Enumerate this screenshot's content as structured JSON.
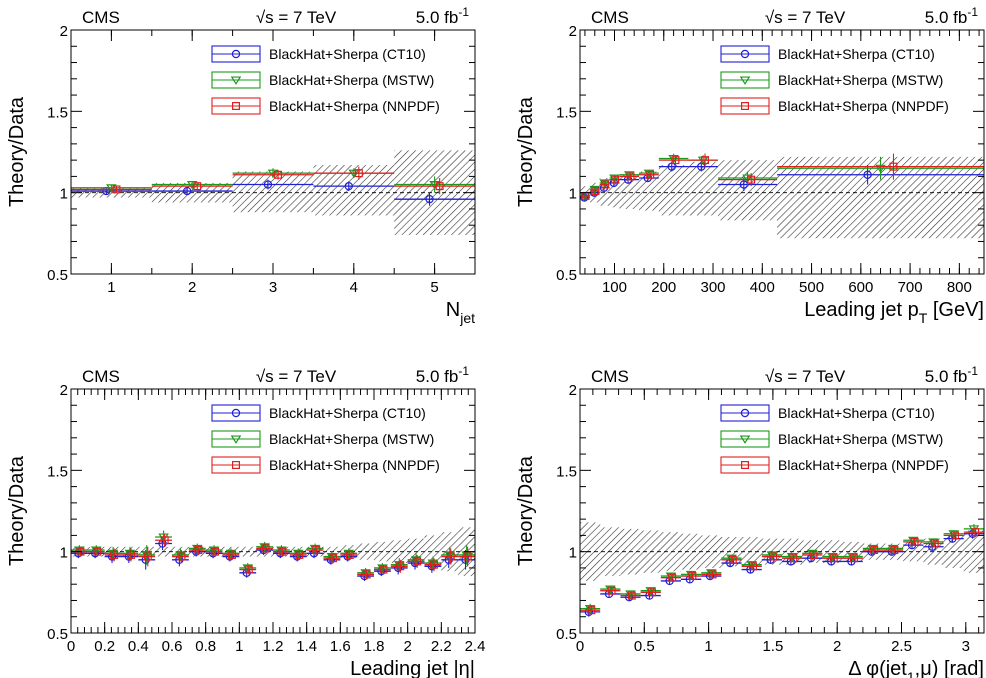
{
  "colors": {
    "ct10": "#1f1fd6",
    "mstw": "#1a9a1a",
    "nnpdf": "#e01e1e",
    "band": "#333333",
    "axis": "#000000"
  },
  "legend_labels": [
    "BlackHat+Sherpa (CT10)",
    "BlackHat+Sherpa (MSTW)",
    "BlackHat+Sherpa (NNPDF)"
  ],
  "chart_data": [
    {
      "type": "line",
      "header": {
        "left": "CMS",
        "center": "√s = 7 TeV",
        "right_base": "5.0 fb",
        "right_sup": "-1"
      },
      "xlabel": "N",
      "xlabel_sub": "jet",
      "xlabel_post": "",
      "ylabel": "Theory/Data",
      "xlim": [
        0.5,
        5.5
      ],
      "ylim": [
        0.5,
        2
      ],
      "xticks": [
        1,
        2,
        3,
        4,
        5
      ],
      "xtick_labels": [
        "1",
        "2",
        "3",
        "4",
        "5"
      ],
      "yticks": [
        0.5,
        1,
        1.5,
        2
      ],
      "ytick_labels": [
        "0.5",
        "1",
        "1.5",
        "2"
      ],
      "legend_position": "top-right",
      "bins": [
        [
          0.5,
          1.5
        ],
        [
          1.5,
          2.5
        ],
        [
          2.5,
          3.5
        ],
        [
          3.5,
          4.5
        ],
        [
          4.5,
          5.5
        ]
      ],
      "uncertainty_band": [
        [
          0.97,
          1.03
        ],
        [
          0.94,
          1.06
        ],
        [
          0.88,
          1.13
        ],
        [
          0.86,
          1.17
        ],
        [
          0.74,
          1.26
        ]
      ],
      "series": [
        {
          "name": "BlackHat+Sherpa (CT10)",
          "values": [
            1.01,
            1.01,
            1.05,
            1.04,
            0.96
          ],
          "errors": [
            0.02,
            0.02,
            0.03,
            0.03,
            0.04
          ]
        },
        {
          "name": "BlackHat+Sherpa (MSTW)",
          "values": [
            1.03,
            1.05,
            1.12,
            1.12,
            1.05
          ],
          "errors": [
            0.02,
            0.02,
            0.03,
            0.03,
            0.05
          ]
        },
        {
          "name": "BlackHat+Sherpa (NNPDF)",
          "values": [
            1.02,
            1.04,
            1.11,
            1.12,
            1.04
          ],
          "errors": [
            0.02,
            0.02,
            0.03,
            0.04,
            0.05
          ]
        }
      ]
    },
    {
      "type": "line",
      "header": {
        "left": "CMS",
        "center": "√s = 7 TeV",
        "right_base": "5.0 fb",
        "right_sup": "-1"
      },
      "xlabel": "Leading jet p",
      "xlabel_sub": "T",
      "xlabel_post": " [GeV]",
      "ylabel": "Theory/Data",
      "xlim": [
        30,
        850
      ],
      "ylim": [
        0.5,
        2
      ],
      "xticks": [
        100,
        200,
        300,
        400,
        500,
        600,
        700,
        800
      ],
      "xtick_labels": [
        "100",
        "200",
        "300",
        "400",
        "500",
        "600",
        "700",
        "800"
      ],
      "yticks": [
        0.5,
        1,
        1.5,
        2
      ],
      "ytick_labels": [
        "0.5",
        "1",
        "1.5",
        "2"
      ],
      "legend_position": "top-right",
      "bins": [
        [
          30,
          50
        ],
        [
          50,
          70
        ],
        [
          70,
          90
        ],
        [
          90,
          110
        ],
        [
          110,
          150
        ],
        [
          150,
          190
        ],
        [
          190,
          250
        ],
        [
          250,
          310
        ],
        [
          310,
          430
        ],
        [
          430,
          850
        ]
      ],
      "uncertainty_band": [
        [
          0.96,
          1.04
        ],
        [
          0.94,
          1.06
        ],
        [
          0.92,
          1.09
        ],
        [
          0.91,
          1.1
        ],
        [
          0.9,
          1.11
        ],
        [
          0.89,
          1.13
        ],
        [
          0.86,
          1.17
        ],
        [
          0.86,
          1.19
        ],
        [
          0.83,
          1.2
        ],
        [
          0.72,
          1.22
        ]
      ],
      "series": [
        {
          "name": "BlackHat+Sherpa (CT10)",
          "values": [
            0.97,
            1.0,
            1.03,
            1.06,
            1.08,
            1.09,
            1.16,
            1.16,
            1.05,
            1.11
          ],
          "errors": [
            0.02,
            0.02,
            0.02,
            0.02,
            0.02,
            0.02,
            0.03,
            0.03,
            0.04,
            0.06
          ]
        },
        {
          "name": "BlackHat+Sherpa (MSTW)",
          "values": [
            0.98,
            1.02,
            1.06,
            1.09,
            1.11,
            1.12,
            1.21,
            1.2,
            1.09,
            1.15
          ],
          "errors": [
            0.02,
            0.02,
            0.02,
            0.02,
            0.02,
            0.02,
            0.03,
            0.03,
            0.04,
            0.07
          ]
        },
        {
          "name": "BlackHat+Sherpa (NNPDF)",
          "values": [
            0.98,
            1.01,
            1.05,
            1.08,
            1.1,
            1.11,
            1.2,
            1.2,
            1.08,
            1.16
          ],
          "errors": [
            0.02,
            0.02,
            0.02,
            0.02,
            0.02,
            0.02,
            0.03,
            0.04,
            0.04,
            0.08
          ]
        }
      ]
    },
    {
      "type": "line",
      "header": {
        "left": "CMS",
        "center": "√s = 7 TeV",
        "right_base": "5.0 fb",
        "right_sup": "-1"
      },
      "xlabel": "Leading jet |η|",
      "xlabel_sub": "",
      "xlabel_post": "",
      "ylabel": "Theory/Data",
      "xlim": [
        0,
        2.4
      ],
      "ylim": [
        0.5,
        2
      ],
      "xticks": [
        0,
        0.2,
        0.4,
        0.6,
        0.8,
        1,
        1.2,
        1.4,
        1.6,
        1.8,
        2,
        2.2,
        2.4
      ],
      "xtick_labels": [
        "0",
        "0.2",
        "0.4",
        "0.6",
        "0.8",
        "1",
        "1.2",
        "1.4",
        "1.6",
        "1.8",
        "2",
        "2.2",
        "2.4"
      ],
      "yticks": [
        0.5,
        1,
        1.5,
        2
      ],
      "ytick_labels": [
        "0.5",
        "1",
        "1.5",
        "2"
      ],
      "legend_position": "top-right",
      "bins": [
        [
          0,
          0.1
        ],
        [
          0.1,
          0.2
        ],
        [
          0.2,
          0.3
        ],
        [
          0.3,
          0.4
        ],
        [
          0.4,
          0.5
        ],
        [
          0.5,
          0.6
        ],
        [
          0.6,
          0.7
        ],
        [
          0.7,
          0.8
        ],
        [
          0.8,
          0.9
        ],
        [
          0.9,
          1.0
        ],
        [
          1.0,
          1.1
        ],
        [
          1.1,
          1.2
        ],
        [
          1.2,
          1.3
        ],
        [
          1.3,
          1.4
        ],
        [
          1.4,
          1.5
        ],
        [
          1.5,
          1.6
        ],
        [
          1.6,
          1.7
        ],
        [
          1.7,
          1.8
        ],
        [
          1.8,
          1.9
        ],
        [
          1.9,
          2.0
        ],
        [
          2.0,
          2.1
        ],
        [
          2.1,
          2.2
        ],
        [
          2.2,
          2.3
        ],
        [
          2.3,
          2.4
        ]
      ],
      "uncertainty_band": [
        [
          0.97,
          1.03
        ],
        [
          0.97,
          1.03
        ],
        [
          0.97,
          1.03
        ],
        [
          0.97,
          1.03
        ],
        [
          0.97,
          1.03
        ],
        [
          0.97,
          1.03
        ],
        [
          0.97,
          1.03
        ],
        [
          0.97,
          1.03
        ],
        [
          0.97,
          1.03
        ],
        [
          0.97,
          1.03
        ],
        [
          0.97,
          1.03
        ],
        [
          0.97,
          1.03
        ],
        [
          0.97,
          1.03
        ],
        [
          0.97,
          1.03
        ],
        [
          0.97,
          1.03
        ],
        [
          0.97,
          1.03
        ],
        [
          0.96,
          1.04
        ],
        [
          0.95,
          1.05
        ],
        [
          0.94,
          1.06
        ],
        [
          0.93,
          1.07
        ],
        [
          0.92,
          1.08
        ],
        [
          0.9,
          1.1
        ],
        [
          0.88,
          1.12
        ],
        [
          0.85,
          1.15
        ]
      ],
      "series": [
        {
          "name": "BlackHat+Sherpa (CT10)",
          "values": [
            0.99,
            0.99,
            0.97,
            0.97,
            0.95,
            1.05,
            0.95,
            1.0,
            0.99,
            0.97,
            0.87,
            1.01,
            0.99,
            0.97,
            0.99,
            0.95,
            0.97,
            0.85,
            0.88,
            0.9,
            0.93,
            0.91,
            0.95,
            0.95
          ],
          "errors": [
            0.03,
            0.03,
            0.04,
            0.04,
            0.06,
            0.04,
            0.04,
            0.03,
            0.03,
            0.03,
            0.03,
            0.03,
            0.03,
            0.03,
            0.03,
            0.03,
            0.03,
            0.03,
            0.03,
            0.04,
            0.04,
            0.04,
            0.05,
            0.06
          ]
        },
        {
          "name": "BlackHat+Sherpa (MSTW)",
          "values": [
            1.01,
            1.01,
            0.99,
            0.99,
            0.98,
            1.09,
            0.98,
            1.02,
            1.01,
            0.99,
            0.9,
            1.03,
            1.01,
            0.99,
            1.02,
            0.97,
            0.99,
            0.87,
            0.9,
            0.92,
            0.95,
            0.93,
            0.98,
            0.98
          ],
          "errors": [
            0.03,
            0.03,
            0.04,
            0.04,
            0.06,
            0.04,
            0.04,
            0.03,
            0.03,
            0.03,
            0.03,
            0.03,
            0.03,
            0.03,
            0.03,
            0.03,
            0.03,
            0.03,
            0.03,
            0.04,
            0.04,
            0.04,
            0.05,
            0.06
          ]
        },
        {
          "name": "BlackHat+Sherpa (NNPDF)",
          "values": [
            1.0,
            1.0,
            0.98,
            0.98,
            0.97,
            1.07,
            0.97,
            1.01,
            1.0,
            0.98,
            0.89,
            1.02,
            1.0,
            0.98,
            1.01,
            0.96,
            0.98,
            0.86,
            0.89,
            0.91,
            0.94,
            0.92,
            0.97,
            0.97
          ],
          "errors": [
            0.03,
            0.03,
            0.04,
            0.04,
            0.06,
            0.04,
            0.04,
            0.03,
            0.03,
            0.03,
            0.03,
            0.03,
            0.03,
            0.03,
            0.03,
            0.03,
            0.03,
            0.03,
            0.03,
            0.04,
            0.04,
            0.04,
            0.05,
            0.06
          ]
        }
      ]
    },
    {
      "type": "line",
      "header": {
        "left": "CMS",
        "center": "√s = 7 TeV",
        "right_base": "5.0 fb",
        "right_sup": "-1"
      },
      "xlabel": "Δ φ(jet",
      "xlabel_sub": "1",
      "xlabel_post": ",μ) [rad]",
      "ylabel": "Theory/Data",
      "xlim": [
        0,
        3.1416
      ],
      "ylim": [
        0.5,
        2
      ],
      "xticks": [
        0,
        0.5,
        1,
        1.5,
        2,
        2.5,
        3
      ],
      "xtick_labels": [
        "0",
        "0.5",
        "1",
        "1.5",
        "2",
        "2.5",
        "3"
      ],
      "yticks": [
        0.5,
        1,
        1.5,
        2
      ],
      "ytick_labels": [
        "0.5",
        "1",
        "1.5",
        "2"
      ],
      "legend_position": "top-right",
      "bins": [
        [
          0,
          0.1571
        ],
        [
          0.1571,
          0.3142
        ],
        [
          0.3142,
          0.4712
        ],
        [
          0.4712,
          0.6283
        ],
        [
          0.6283,
          0.7854
        ],
        [
          0.7854,
          0.9425
        ],
        [
          0.9425,
          1.0996
        ],
        [
          1.0996,
          1.2566
        ],
        [
          1.2566,
          1.4137
        ],
        [
          1.4137,
          1.5708
        ],
        [
          1.5708,
          1.7279
        ],
        [
          1.7279,
          1.885
        ],
        [
          1.885,
          2.042
        ],
        [
          2.042,
          2.1991
        ],
        [
          2.1991,
          2.3562
        ],
        [
          2.3562,
          2.5133
        ],
        [
          2.5133,
          2.6704
        ],
        [
          2.6704,
          2.8274
        ],
        [
          2.8274,
          2.9845
        ],
        [
          2.9845,
          3.1416
        ]
      ],
      "uncertainty_band": [
        [
          0.82,
          1.18
        ],
        [
          0.85,
          1.15
        ],
        [
          0.86,
          1.14
        ],
        [
          0.87,
          1.13
        ],
        [
          0.88,
          1.12
        ],
        [
          0.89,
          1.11
        ],
        [
          0.9,
          1.1
        ],
        [
          0.91,
          1.09
        ],
        [
          0.91,
          1.09
        ],
        [
          0.92,
          1.08
        ],
        [
          0.92,
          1.08
        ],
        [
          0.93,
          1.07
        ],
        [
          0.93,
          1.07
        ],
        [
          0.94,
          1.06
        ],
        [
          0.95,
          1.05
        ],
        [
          0.95,
          1.05
        ],
        [
          0.94,
          1.06
        ],
        [
          0.92,
          1.08
        ],
        [
          0.9,
          1.1
        ],
        [
          0.87,
          1.13
        ]
      ],
      "series": [
        {
          "name": "BlackHat+Sherpa (CT10)",
          "values": [
            0.63,
            0.74,
            0.72,
            0.73,
            0.82,
            0.83,
            0.85,
            0.93,
            0.89,
            0.95,
            0.94,
            0.96,
            0.94,
            0.94,
            1.0,
            1.0,
            1.04,
            1.03,
            1.08,
            1.11
          ],
          "errors": [
            0.03,
            0.02,
            0.02,
            0.02,
            0.02,
            0.02,
            0.02,
            0.02,
            0.02,
            0.02,
            0.02,
            0.02,
            0.02,
            0.02,
            0.02,
            0.02,
            0.02,
            0.02,
            0.02,
            0.03
          ]
        },
        {
          "name": "BlackHat+Sherpa (MSTW)",
          "values": [
            0.65,
            0.77,
            0.74,
            0.76,
            0.85,
            0.86,
            0.87,
            0.96,
            0.92,
            0.98,
            0.97,
            0.99,
            0.97,
            0.97,
            1.02,
            1.02,
            1.07,
            1.06,
            1.11,
            1.14
          ],
          "errors": [
            0.03,
            0.02,
            0.02,
            0.02,
            0.02,
            0.02,
            0.02,
            0.02,
            0.02,
            0.02,
            0.02,
            0.02,
            0.02,
            0.02,
            0.02,
            0.02,
            0.02,
            0.02,
            0.02,
            0.03
          ]
        },
        {
          "name": "BlackHat+Sherpa (NNPDF)",
          "values": [
            0.64,
            0.76,
            0.73,
            0.75,
            0.84,
            0.85,
            0.86,
            0.95,
            0.91,
            0.97,
            0.96,
            0.98,
            0.96,
            0.96,
            1.01,
            1.01,
            1.06,
            1.05,
            1.1,
            1.12
          ],
          "errors": [
            0.03,
            0.02,
            0.02,
            0.02,
            0.02,
            0.02,
            0.02,
            0.02,
            0.02,
            0.02,
            0.02,
            0.02,
            0.02,
            0.02,
            0.02,
            0.02,
            0.02,
            0.02,
            0.02,
            0.03
          ]
        }
      ]
    }
  ]
}
